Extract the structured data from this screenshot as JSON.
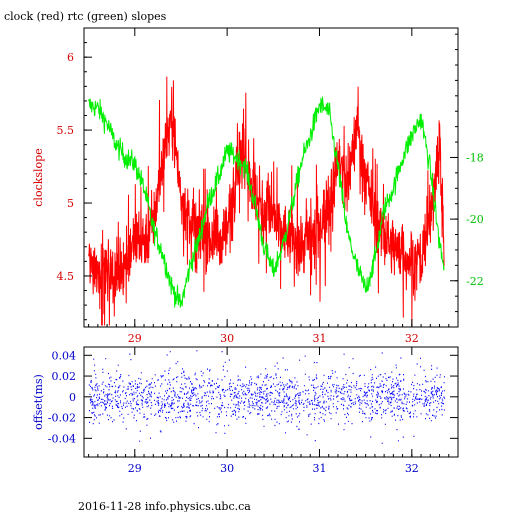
{
  "title": "clock (red) rtc (green) slopes",
  "footer": "2016-11-28 info.physics.ubc.ca",
  "colors": {
    "frame": "#000000",
    "red_axis": "#d40000",
    "green_axis": "#00c000",
    "blue_axis": "#0000cc",
    "clock_trace": "#ff0000",
    "rtc_trace": "#00ee00",
    "offset_points": "#0000ff"
  },
  "chart_data": [
    {
      "type": "line",
      "title": "clock (red) rtc (green) slopes",
      "ylabel": "clockslope",
      "xlim": [
        28.45,
        32.5
      ],
      "ylim": [
        4.15,
        6.2
      ],
      "y2lim": [
        -23.5,
        -13.8
      ],
      "x_ticks": [
        29,
        30,
        31,
        32
      ],
      "x_tick_labels": [
        "29",
        "30",
        "31",
        "32"
      ],
      "y_ticks": [
        4.5,
        5,
        5.5,
        6
      ],
      "y_tick_labels": [
        "4.5",
        "5",
        "5.5",
        "6"
      ],
      "y2_ticks": [
        -22,
        -20,
        -18
      ],
      "y2_tick_labels": [
        "-22",
        "-20",
        "-18"
      ],
      "grid": false,
      "series": [
        {
          "name": "clock",
          "axis": "left",
          "color": "#ff0000",
          "x": [
            28.5,
            28.6,
            28.7,
            28.8,
            28.9,
            29.0,
            29.1,
            29.2,
            29.3,
            29.4,
            29.5,
            29.6,
            29.7,
            29.8,
            29.9,
            30.0,
            30.1,
            30.2,
            30.3,
            30.4,
            30.5,
            30.6,
            30.7,
            30.8,
            30.9,
            31.0,
            31.1,
            31.2,
            31.3,
            31.4,
            31.5,
            31.6,
            31.7,
            31.8,
            31.9,
            32.0,
            32.1,
            32.2,
            32.3,
            32.35
          ],
          "y": [
            4.6,
            4.55,
            4.55,
            4.5,
            4.6,
            4.75,
            4.75,
            4.85,
            5.3,
            5.6,
            5.05,
            4.85,
            4.8,
            4.75,
            4.75,
            4.8,
            5.3,
            5.35,
            5.0,
            4.95,
            4.9,
            4.8,
            4.75,
            4.7,
            4.75,
            4.85,
            5.0,
            5.3,
            5.1,
            5.55,
            5.2,
            4.9,
            4.75,
            4.7,
            4.65,
            4.6,
            4.6,
            4.9,
            5.45,
            4.7
          ]
        },
        {
          "name": "rtc",
          "axis": "right",
          "color": "#00ee00",
          "x": [
            28.5,
            28.6,
            28.7,
            28.8,
            28.9,
            29.0,
            29.1,
            29.2,
            29.3,
            29.4,
            29.5,
            29.6,
            29.7,
            29.8,
            29.9,
            30.0,
            30.1,
            30.2,
            30.3,
            30.4,
            30.5,
            30.6,
            30.7,
            30.8,
            30.9,
            31.0,
            31.1,
            31.2,
            31.3,
            31.4,
            31.5,
            31.6,
            31.7,
            31.8,
            31.9,
            32.0,
            32.1,
            32.2,
            32.3,
            32.35
          ],
          "y": [
            -16.3,
            -16.4,
            -16.9,
            -17.6,
            -18.0,
            -18.2,
            -19.0,
            -20.3,
            -21.1,
            -22.2,
            -22.8,
            -21.5,
            -20.6,
            -19.4,
            -18.7,
            -17.8,
            -18.0,
            -18.3,
            -19.5,
            -20.9,
            -21.7,
            -20.9,
            -19.6,
            -18.2,
            -17.3,
            -16.3,
            -16.5,
            -18.3,
            -20.4,
            -21.5,
            -22.3,
            -21.3,
            -19.7,
            -19.0,
            -18.0,
            -17.3,
            -16.7,
            -18.4,
            -20.8,
            -21.6
          ]
        }
      ]
    },
    {
      "type": "scatter",
      "ylabel": "offset(ms)",
      "xlim": [
        28.45,
        32.5
      ],
      "ylim": [
        -0.058,
        0.048
      ],
      "x_ticks": [
        29,
        30,
        31,
        32
      ],
      "x_tick_labels": [
        "29",
        "30",
        "31",
        "32"
      ],
      "y_ticks": [
        -0.04,
        -0.02,
        0,
        0.02,
        0.04
      ],
      "y_tick_labels": [
        "-0.04",
        "-0.02",
        "0",
        "0.02",
        "0.04"
      ],
      "grid": false,
      "series": [
        {
          "name": "offset",
          "color": "#0000ff",
          "x_range": [
            28.5,
            32.35
          ],
          "center": 0.0,
          "typical_spread": 0.012,
          "max_abs": 0.045
        }
      ]
    }
  ]
}
